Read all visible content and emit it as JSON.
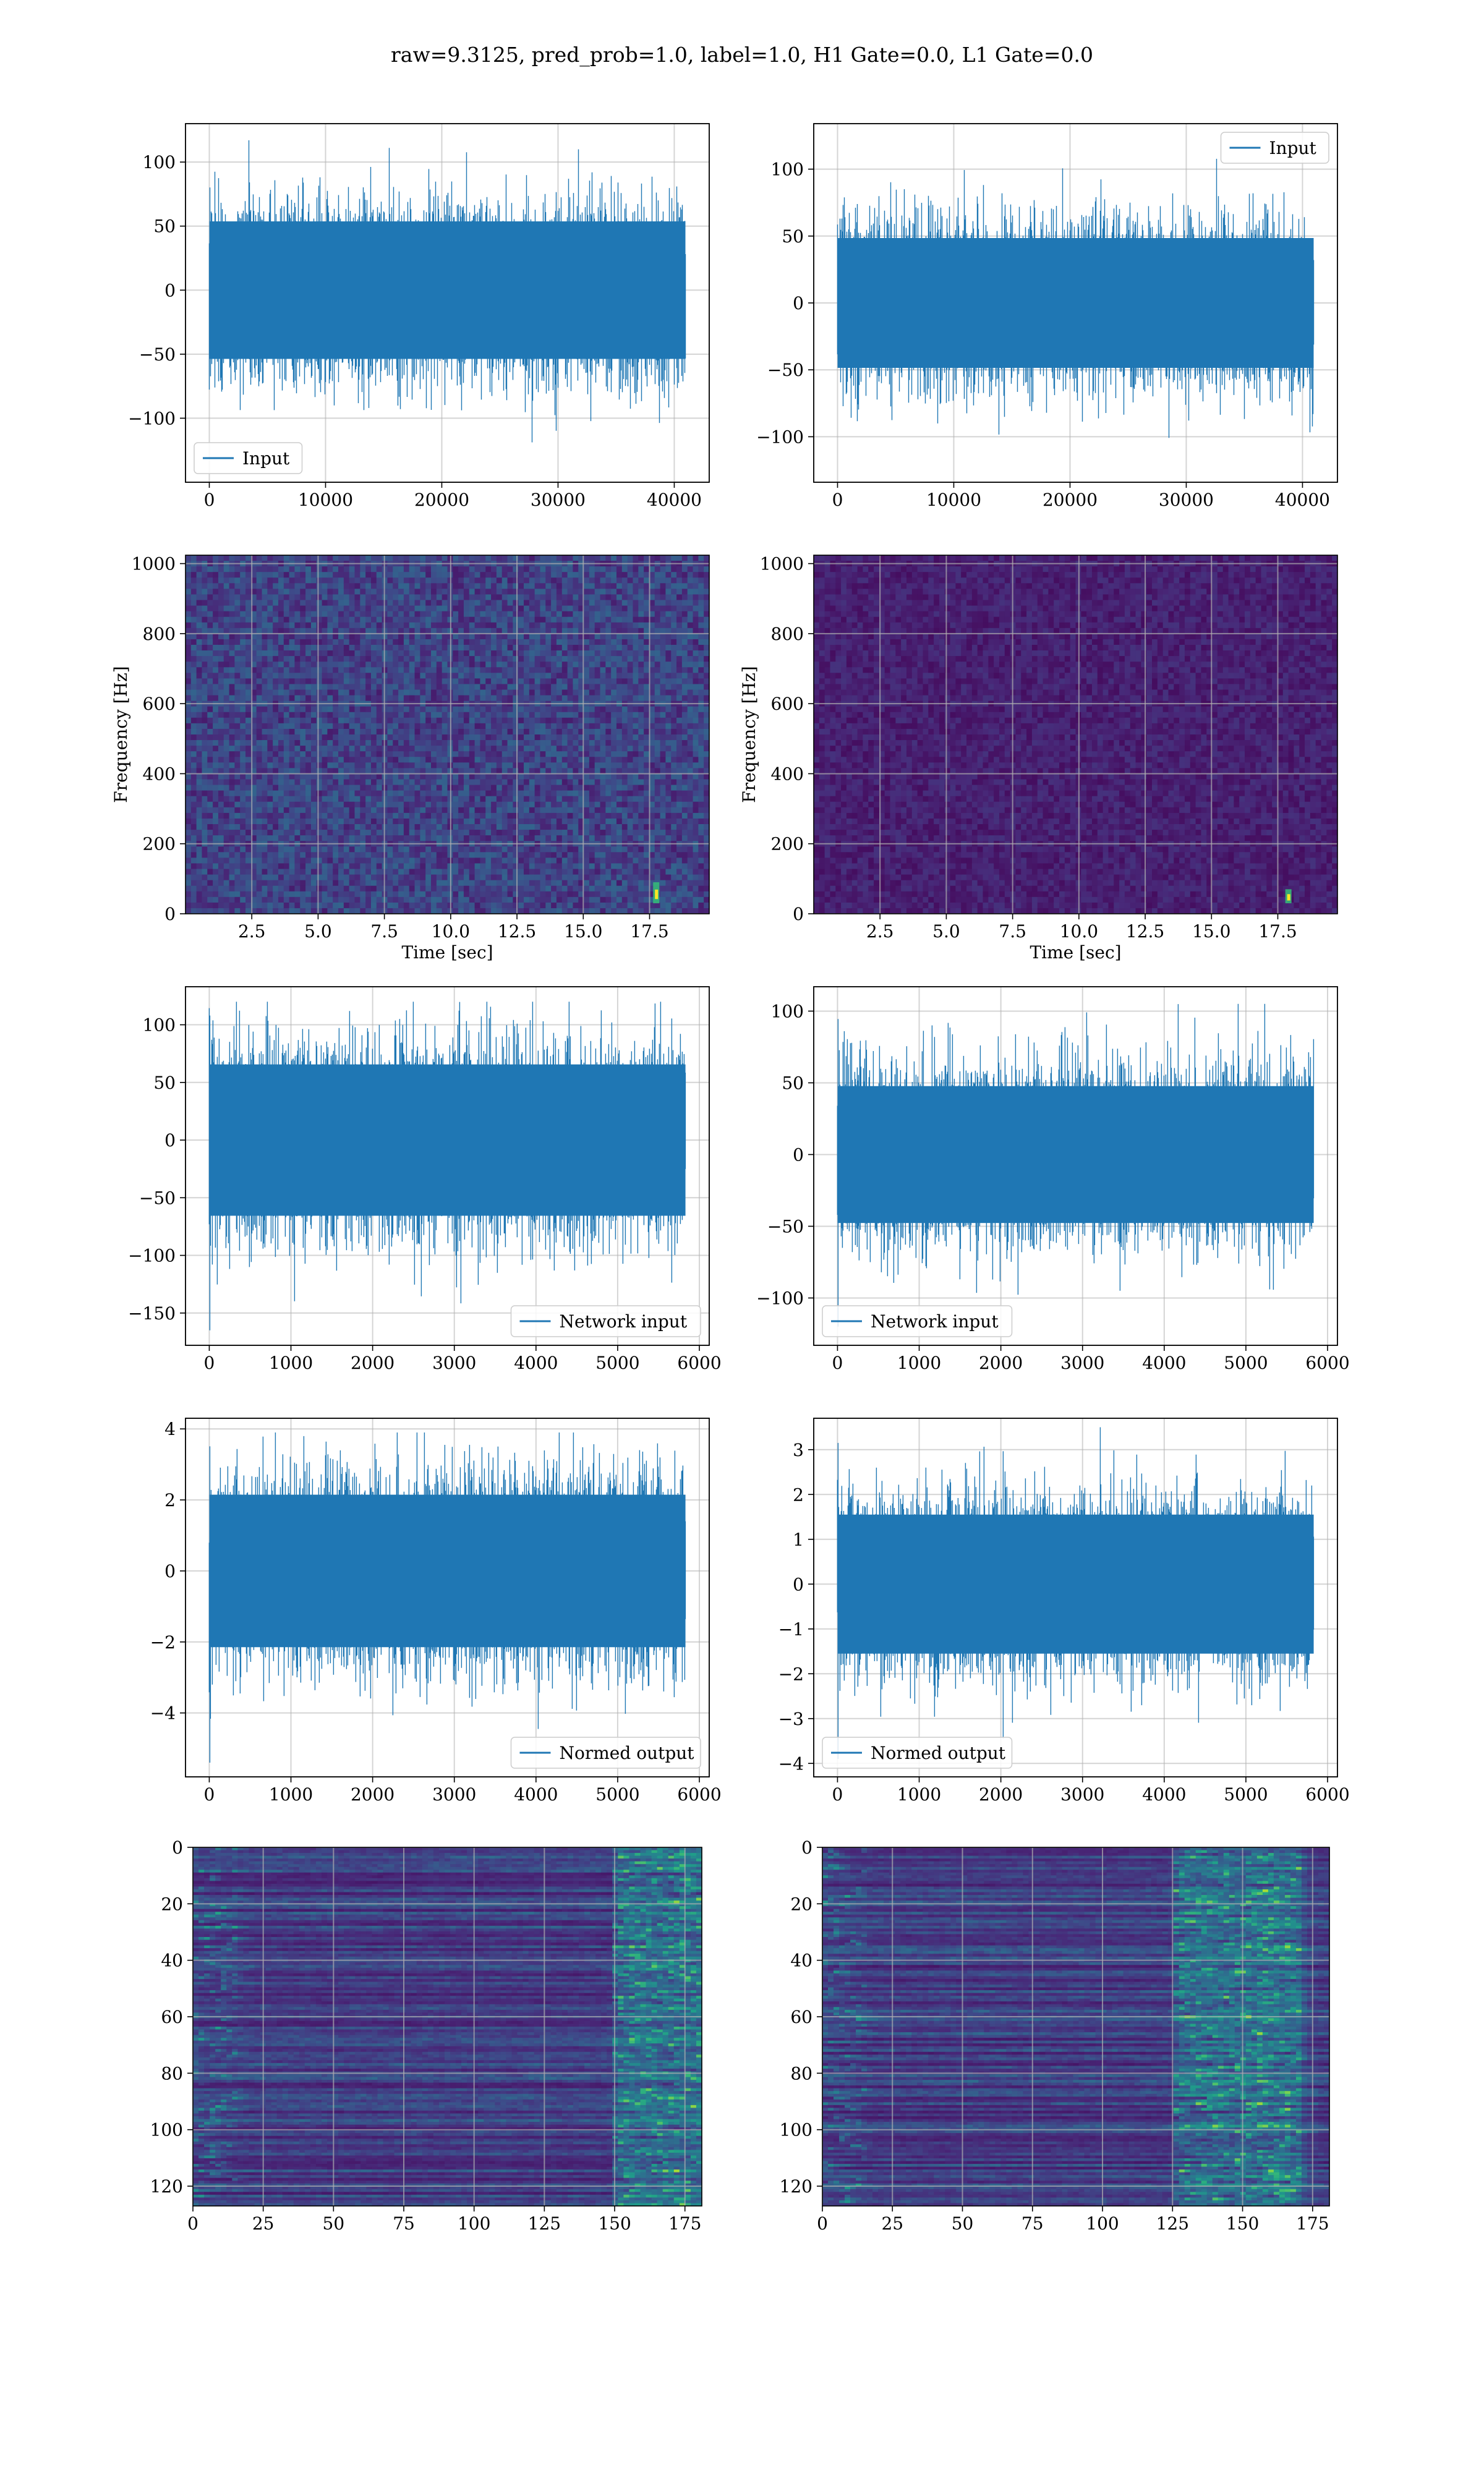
{
  "figure": {
    "suptitle": "raw=9.3125, pred_prob=1.0, label=1.0, H1 Gate=0.0, L1 Gate=0.0"
  },
  "colors": {
    "line": "#1f77b4",
    "grid": "#b0b0b0",
    "viridis_low": "#440154",
    "viridis_high": "#fde725"
  },
  "chart_data": [
    {
      "id": "input-h1",
      "type": "line",
      "style": "dense-noise",
      "series": [
        {
          "name": "Input",
          "n_points": 40960,
          "amplitude_range": [
            -135,
            117
          ]
        }
      ],
      "xlim": [
        -2048,
        43008
      ],
      "ylim": [
        -150,
        130
      ],
      "xticks": [
        0,
        10000,
        20000,
        30000,
        40000
      ],
      "xtick_labels": [
        "0",
        "10000",
        "20000",
        "30000",
        "40000"
      ],
      "yticks": [
        -100,
        -50,
        0,
        50,
        100
      ],
      "ytick_labels": [
        "−100",
        "−50",
        "0",
        "50",
        "100"
      ],
      "xlabel": "",
      "ylabel": "",
      "legend": "lower-left",
      "grid": true
    },
    {
      "id": "input-l1",
      "type": "line",
      "style": "dense-noise",
      "series": [
        {
          "name": "Input",
          "n_points": 40960,
          "amplitude_range": [
            -122,
            112
          ]
        }
      ],
      "xlim": [
        -2048,
        43008
      ],
      "ylim": [
        -134,
        134
      ],
      "xticks": [
        0,
        10000,
        20000,
        30000,
        40000
      ],
      "xtick_labels": [
        "0",
        "10000",
        "20000",
        "30000",
        "40000"
      ],
      "yticks": [
        -100,
        -50,
        0,
        50,
        100
      ],
      "ytick_labels": [
        "−100",
        "−50",
        "0",
        "50",
        "100"
      ],
      "xlabel": "",
      "ylabel": "",
      "legend": "upper-right",
      "grid": true
    },
    {
      "id": "spectrogram-h1",
      "type": "heatmap",
      "colormap": "viridis",
      "xlim": [
        0,
        19.75
      ],
      "ylim": [
        0,
        1024
      ],
      "xticks": [
        2.5,
        5.0,
        7.5,
        10.0,
        12.5,
        15.0,
        17.5
      ],
      "xtick_labels": [
        "2.5",
        "5.0",
        "7.5",
        "10.0",
        "12.5",
        "15.0",
        "17.5"
      ],
      "yticks": [
        0,
        200,
        400,
        600,
        800,
        1000
      ],
      "ytick_labels": [
        "0",
        "200",
        "400",
        "600",
        "800",
        "1000"
      ],
      "xlabel": "Time [sec]",
      "ylabel": "Frequency [Hz]",
      "background_level": 0.22,
      "highlight": {
        "time": 17.75,
        "freq_range": [
          30,
          90
        ]
      },
      "grid": true
    },
    {
      "id": "spectrogram-l1",
      "type": "heatmap",
      "colormap": "viridis",
      "xlim": [
        0,
        19.75
      ],
      "ylim": [
        0,
        1024
      ],
      "xticks": [
        2.5,
        5.0,
        7.5,
        10.0,
        12.5,
        15.0,
        17.5
      ],
      "xtick_labels": [
        "2.5",
        "5.0",
        "7.5",
        "10.0",
        "12.5",
        "15.0",
        "17.5"
      ],
      "yticks": [
        0,
        200,
        400,
        600,
        800,
        1000
      ],
      "ytick_labels": [
        "0",
        "200",
        "400",
        "600",
        "800",
        "1000"
      ],
      "xlabel": "Time [sec]",
      "ylabel": "Frequency [Hz]",
      "background_level": 0.1,
      "highlight": {
        "time": 17.9,
        "freq_range": [
          30,
          70
        ]
      },
      "grid": true
    },
    {
      "id": "network-input-h1",
      "type": "line",
      "style": "dense-noise",
      "series": [
        {
          "name": "Network input",
          "n_points": 5830,
          "amplitude_range": [
            -165,
            120
          ]
        }
      ],
      "xlim": [
        -291,
        6121
      ],
      "ylim": [
        -178,
        133
      ],
      "xticks": [
        0,
        1000,
        2000,
        3000,
        4000,
        5000,
        6000
      ],
      "xtick_labels": [
        "0",
        "1000",
        "2000",
        "3000",
        "4000",
        "5000",
        "6000"
      ],
      "yticks": [
        -150,
        -100,
        -50,
        0,
        50,
        100
      ],
      "ytick_labels": [
        "−150",
        "−100",
        "−50",
        "0",
        "50",
        "100"
      ],
      "xlabel": "",
      "ylabel": "",
      "legend": "lower-right",
      "grid": true
    },
    {
      "id": "network-input-l1",
      "type": "line",
      "style": "dense-noise",
      "series": [
        {
          "name": "Network input",
          "n_points": 5830,
          "amplitude_range": [
            -120,
            105
          ]
        }
      ],
      "xlim": [
        -291,
        6121
      ],
      "ylim": [
        -133,
        117
      ],
      "xticks": [
        0,
        1000,
        2000,
        3000,
        4000,
        5000,
        6000
      ],
      "xtick_labels": [
        "0",
        "1000",
        "2000",
        "3000",
        "4000",
        "5000",
        "6000"
      ],
      "yticks": [
        -100,
        -50,
        0,
        50,
        100
      ],
      "ytick_labels": [
        "−100",
        "−50",
        "0",
        "50",
        "100"
      ],
      "xlabel": "",
      "ylabel": "",
      "legend": "lower-left",
      "grid": true
    },
    {
      "id": "normed-output-h1",
      "type": "line",
      "style": "dense-noise",
      "series": [
        {
          "name": "Normed output",
          "n_points": 5830,
          "amplitude_range": [
            -5.4,
            3.9
          ]
        }
      ],
      "xlim": [
        -291,
        6121
      ],
      "ylim": [
        -5.8,
        4.3
      ],
      "xticks": [
        0,
        1000,
        2000,
        3000,
        4000,
        5000,
        6000
      ],
      "xtick_labels": [
        "0",
        "1000",
        "2000",
        "3000",
        "4000",
        "5000",
        "6000"
      ],
      "yticks": [
        -4,
        -2,
        0,
        2,
        4
      ],
      "ytick_labels": [
        "−4",
        "−2",
        "0",
        "2",
        "4"
      ],
      "xlabel": "",
      "ylabel": "",
      "legend": "lower-right",
      "grid": true
    },
    {
      "id": "normed-output-l1",
      "type": "line",
      "style": "dense-noise",
      "series": [
        {
          "name": "Normed output",
          "n_points": 5830,
          "amplitude_range": [
            -3.9,
            3.5
          ]
        }
      ],
      "xlim": [
        -291,
        6121
      ],
      "ylim": [
        -4.3,
        3.7
      ],
      "xticks": [
        0,
        1000,
        2000,
        3000,
        4000,
        5000,
        6000
      ],
      "xtick_labels": [
        "0",
        "1000",
        "2000",
        "3000",
        "4000",
        "5000",
        "6000"
      ],
      "yticks": [
        -4,
        -3,
        -2,
        -1,
        0,
        1,
        2,
        3
      ],
      "ytick_labels": [
        "−4",
        "−3",
        "−2",
        "−1",
        "0",
        "1",
        "2",
        "3"
      ],
      "xlabel": "",
      "ylabel": "",
      "legend": "lower-left",
      "grid": true
    },
    {
      "id": "feature-map-h1",
      "type": "heatmap",
      "colormap": "viridis",
      "rows": 128,
      "cols": 182,
      "xlim": [
        0,
        181
      ],
      "ylim": [
        127,
        0
      ],
      "xticks": [
        0,
        25,
        50,
        75,
        100,
        125,
        150,
        175
      ],
      "xtick_labels": [
        "0",
        "25",
        "50",
        "75",
        "100",
        "125",
        "150",
        "175"
      ],
      "yticks": [
        0,
        20,
        40,
        60,
        80,
        100,
        120
      ],
      "ytick_labels": [
        "0",
        "20",
        "40",
        "60",
        "80",
        "100",
        "120"
      ],
      "active_column_range": [
        150,
        181
      ],
      "grid": true
    },
    {
      "id": "feature-map-l1",
      "type": "heatmap",
      "colormap": "viridis",
      "rows": 128,
      "cols": 182,
      "xlim": [
        0,
        181
      ],
      "ylim": [
        127,
        0
      ],
      "xticks": [
        0,
        25,
        50,
        75,
        100,
        125,
        150,
        175
      ],
      "xtick_labels": [
        "0",
        "25",
        "50",
        "75",
        "100",
        "125",
        "150",
        "175"
      ],
      "yticks": [
        0,
        20,
        40,
        60,
        80,
        100,
        120
      ],
      "ytick_labels": [
        "0",
        "20",
        "40",
        "60",
        "80",
        "100",
        "120"
      ],
      "active_column_range": [
        125,
        170
      ],
      "grid": true
    }
  ]
}
